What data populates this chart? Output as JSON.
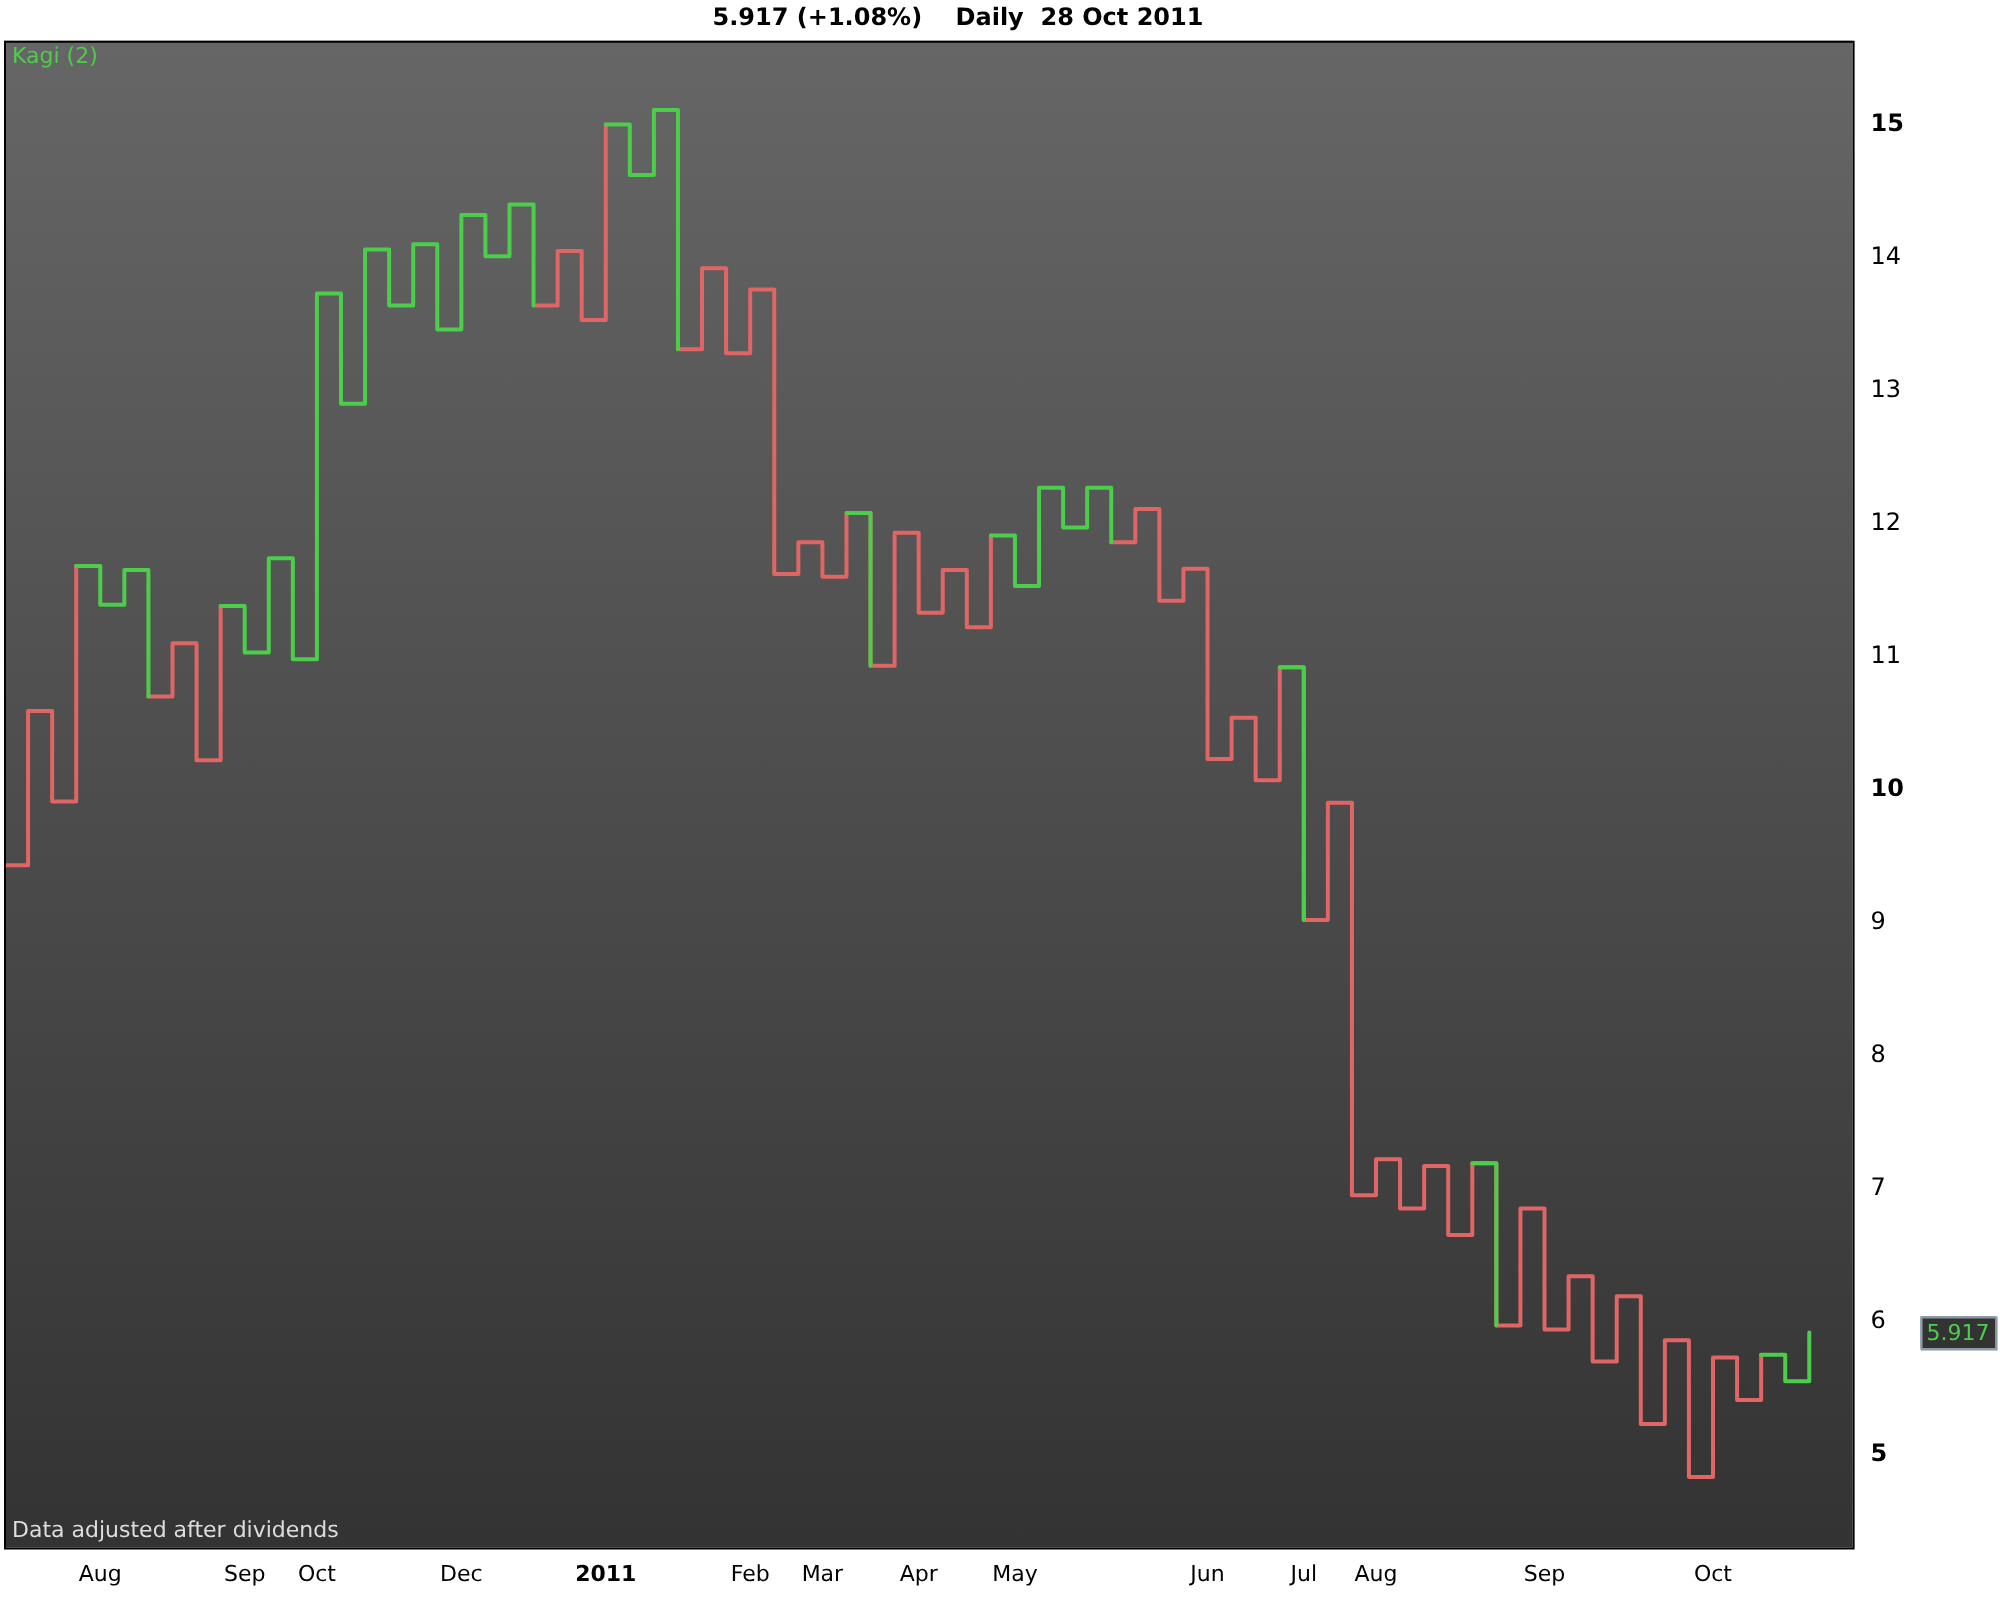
{
  "chart_data": {
    "type": "step",
    "title": "5.917 (+1.08%)    Daily  28 Oct 2011",
    "categories": [
      null,
      null,
      null,
      null,
      "Aug",
      null,
      null,
      null,
      null,
      null,
      "Sep",
      null,
      null,
      "Oct",
      null,
      null,
      null,
      null,
      null,
      "Dec",
      null,
      null,
      null,
      null,
      null,
      "2011",
      null,
      null,
      null,
      null,
      null,
      "Feb",
      null,
      null,
      "Mar",
      null,
      null,
      null,
      "Apr",
      null,
      null,
      null,
      "May",
      null,
      null,
      null,
      null,
      null,
      null,
      null,
      "Jun",
      null,
      null,
      null,
      "Jul",
      null,
      null,
      "Aug",
      null,
      null,
      null,
      null,
      null,
      null,
      "Sep",
      null,
      null,
      null,
      null,
      null,
      null,
      "Oct",
      null,
      null,
      null,
      null
    ],
    "series": [
      {
        "color": "#4ccd4c",
        "values": [
          null,
          null,
          null,
          11.68,
          11.39,
          11.65,
          10.7,
          null,
          null,
          11.38,
          11.03,
          11.74,
          10.98,
          13.73,
          12.9,
          14.06,
          13.64,
          14.1,
          13.46,
          14.32,
          14.01,
          14.4,
          13.64,
          null,
          null,
          15.0,
          14.62,
          15.11,
          13.31,
          null,
          null,
          null,
          null,
          null,
          null,
          12.08,
          10.93,
          null,
          null,
          null,
          null,
          11.91,
          11.53,
          12.27,
          11.97,
          12.27,
          11.86,
          null,
          null,
          null,
          null,
          null,
          null,
          10.92,
          9.02,
          null,
          null,
          null,
          null,
          null,
          null,
          7.19,
          5.97,
          null,
          null,
          null,
          null,
          null,
          null,
          null,
          null,
          null,
          null,
          5.75,
          5.55,
          5.917
        ]
      },
      {
        "color": "#e06666",
        "values": [
          9.43,
          10.59,
          9.91,
          11.68,
          null,
          null,
          10.7,
          11.1,
          10.22,
          11.38,
          null,
          null,
          null,
          null,
          null,
          null,
          null,
          null,
          null,
          null,
          null,
          null,
          13.64,
          14.05,
          13.53,
          15.0,
          null,
          null,
          13.31,
          13.92,
          13.28,
          13.76,
          11.62,
          11.86,
          11.6,
          12.08,
          10.93,
          11.93,
          11.33,
          11.65,
          11.22,
          11.91,
          null,
          null,
          null,
          null,
          11.86,
          12.11,
          11.42,
          11.66,
          10.23,
          10.54,
          10.07,
          10.92,
          9.02,
          9.9,
          6.95,
          7.22,
          6.85,
          7.17,
          6.65,
          7.19,
          5.97,
          6.85,
          5.94,
          6.34,
          5.7,
          6.19,
          5.23,
          5.86,
          4.83,
          5.73,
          5.41,
          5.75,
          null,
          null
        ]
      }
    ],
    "ylim": [
      4.3,
      15.63
    ],
    "yticks": [
      5,
      6,
      7,
      8,
      9,
      10,
      11,
      12,
      13,
      14,
      15
    ],
    "annotations": [
      "Kagi (2)",
      "Data adjusted after dividends",
      "5.917"
    ]
  }
}
